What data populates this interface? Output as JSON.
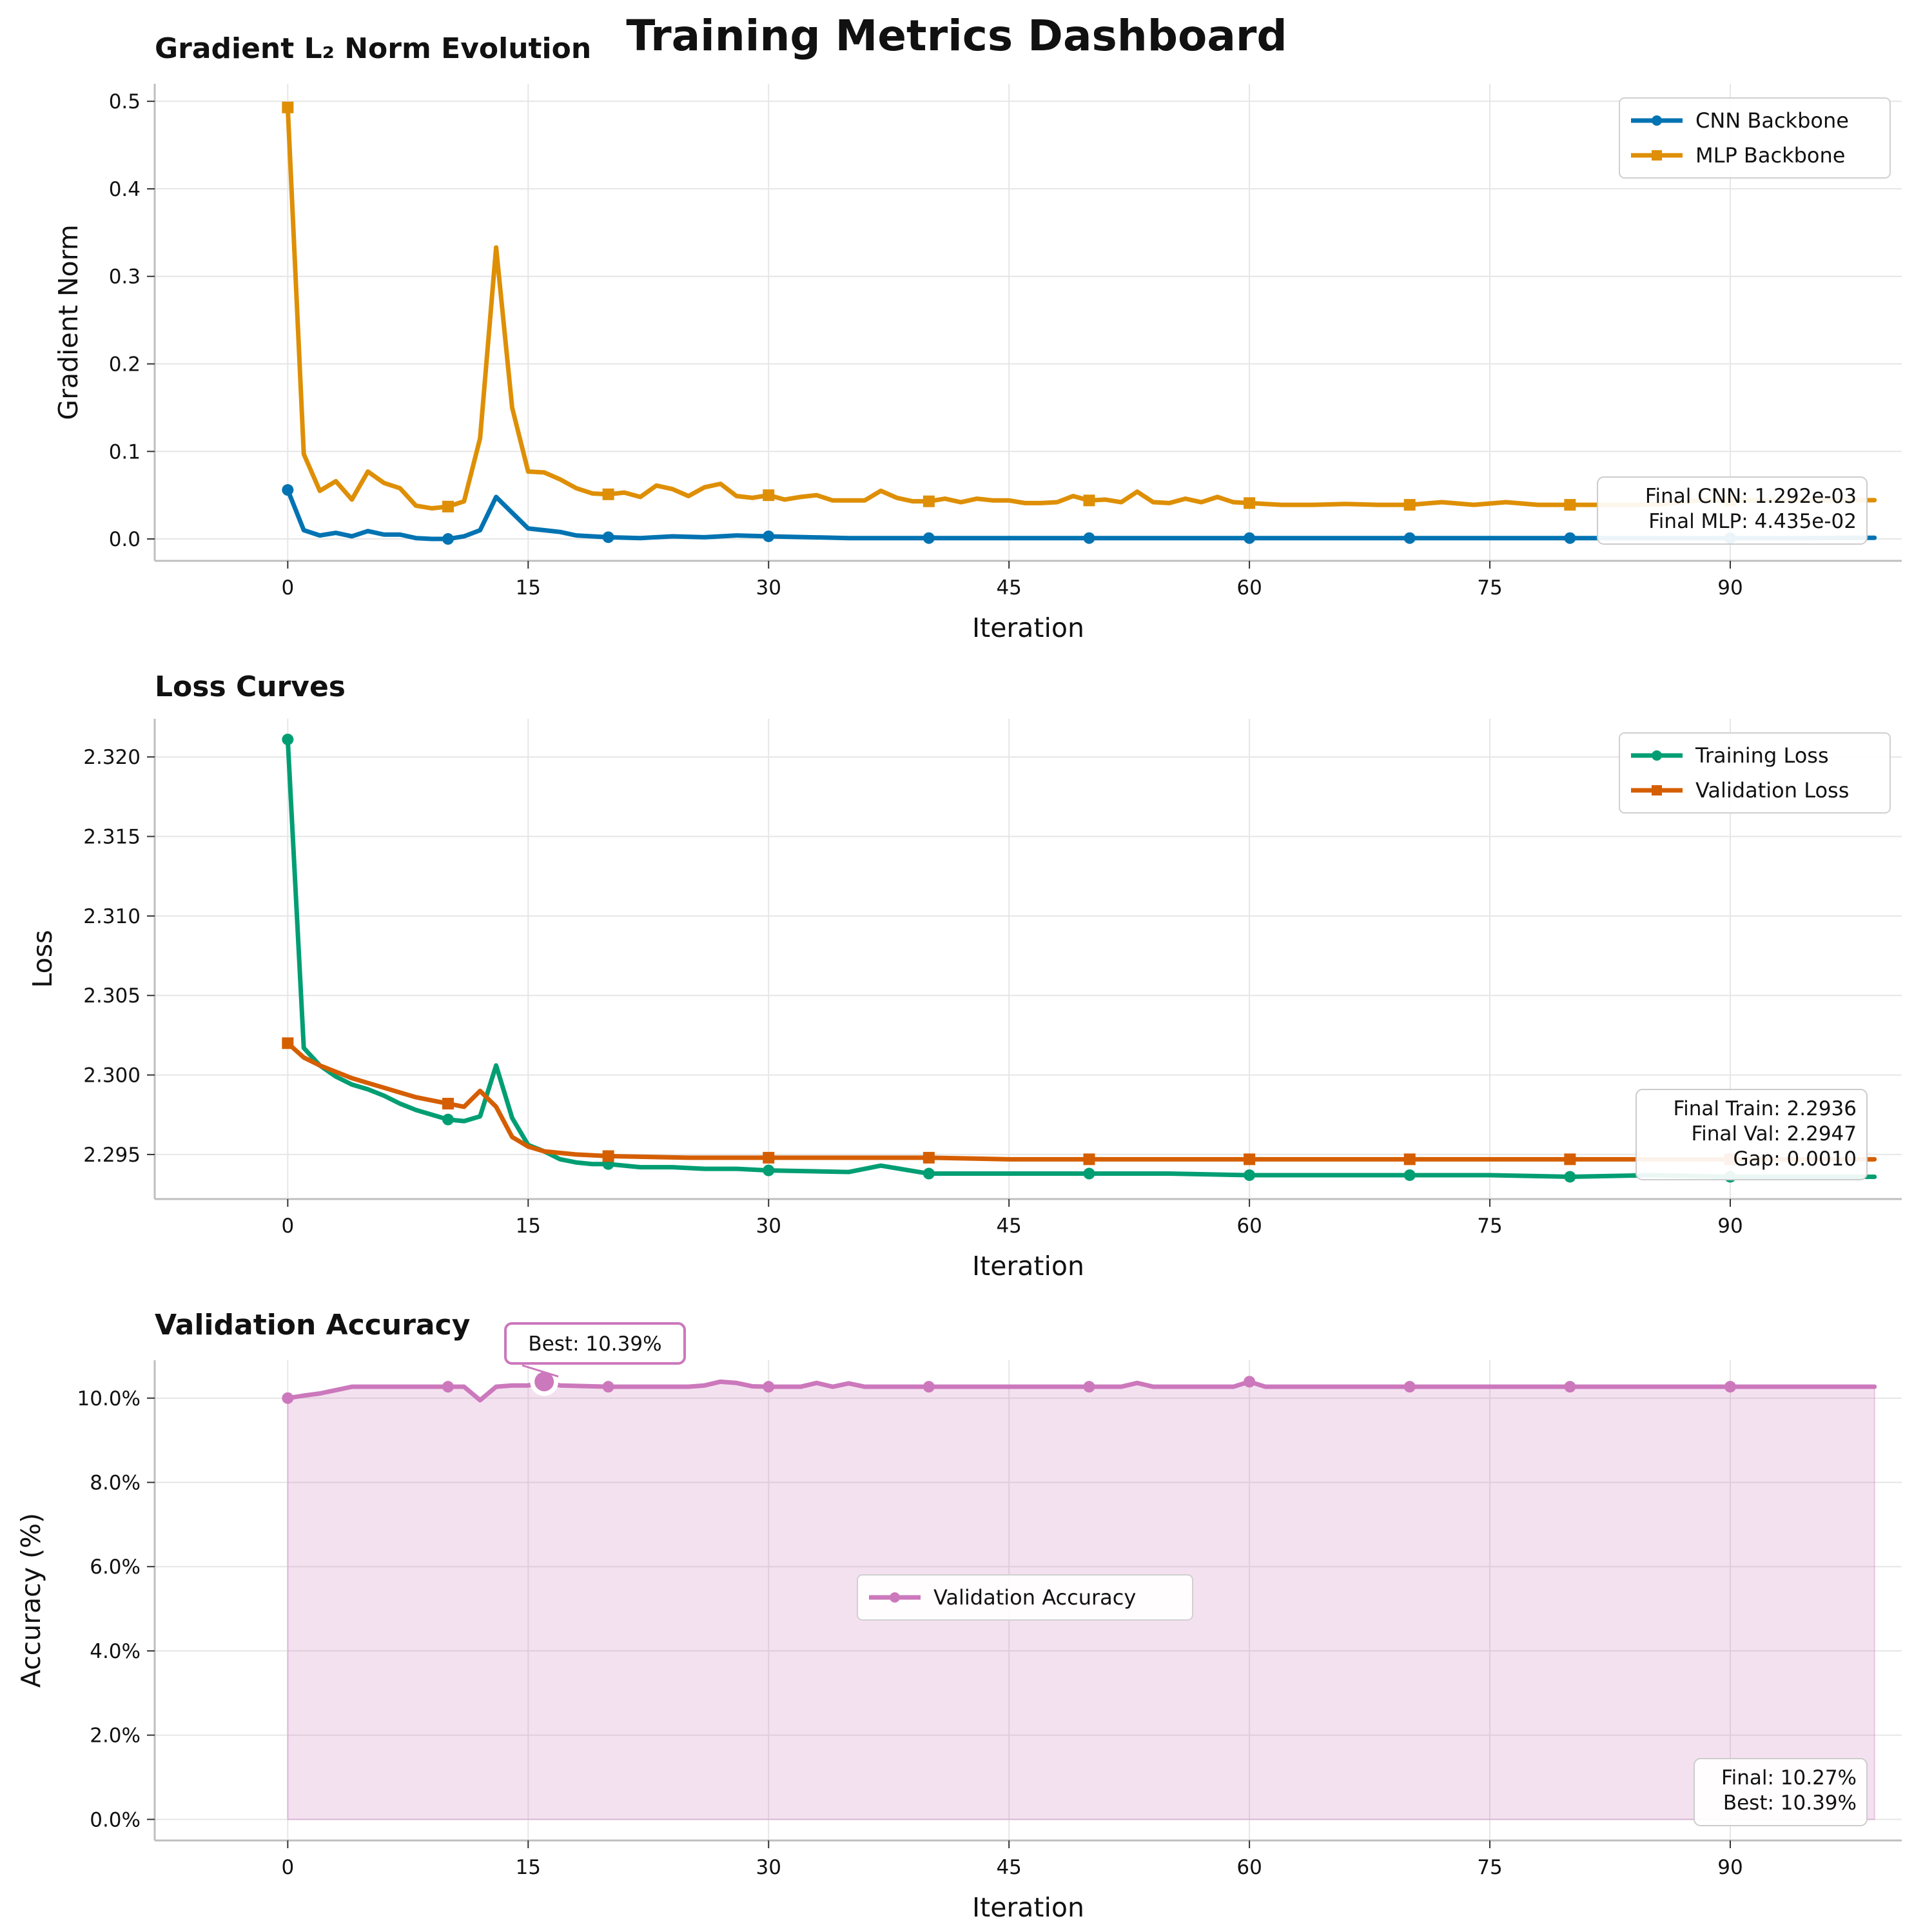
{
  "figure_title": "Training Metrics Dashboard",
  "colors": {
    "cnn": "#0173B2",
    "mlp": "#DE8F05",
    "train": "#029E73",
    "val": "#D55E00",
    "acc": "#CC78BC",
    "grid": "#E6E6E6",
    "spine": "#BFBFBF"
  },
  "chart_data": [
    {
      "type": "line",
      "title": "Gradient L₂ Norm Evolution",
      "xlabel": "Iteration",
      "ylabel": "Gradient Norm",
      "xlim": [
        -8.3,
        100.7
      ],
      "ylim": [
        -0.025,
        0.52
      ],
      "xticks": [
        0,
        15,
        30,
        45,
        60,
        75,
        90
      ],
      "xtick_labels": [
        "0",
        "15",
        "30",
        "45",
        "60",
        "75",
        "90"
      ],
      "yticks": [
        0.0,
        0.1,
        0.2,
        0.3,
        0.4,
        0.5
      ],
      "ytick_labels": [
        "0.0",
        "0.1",
        "0.2",
        "0.3",
        "0.4",
        "0.5"
      ],
      "grid": true,
      "legend": "top-right",
      "annotation": [
        "Final CNN: 1.292e-03",
        "Final MLP: 4.435e-02"
      ],
      "series": [
        {
          "name": "CNN Backbone",
          "marker": "circle",
          "color": "#0173B2",
          "markevery": 10,
          "x": [
            0,
            1,
            2,
            3,
            4,
            5,
            6,
            7,
            8,
            9,
            10,
            11,
            12,
            13,
            14,
            15,
            16,
            17,
            18,
            19,
            20,
            22,
            24,
            26,
            28,
            30,
            35,
            40,
            45,
            50,
            55,
            60,
            65,
            70,
            75,
            80,
            85,
            90,
            95,
            99
          ],
          "y": [
            0.056,
            0.01,
            0.004,
            0.007,
            0.003,
            0.009,
            0.005,
            0.005,
            0.001,
            0.0,
            0.0,
            0.003,
            0.01,
            0.048,
            0.03,
            0.012,
            0.01,
            0.008,
            0.004,
            0.003,
            0.002,
            0.001,
            0.003,
            0.002,
            0.004,
            0.003,
            0.001,
            0.001,
            0.001,
            0.001,
            0.001,
            0.001,
            0.001,
            0.001,
            0.001,
            0.001,
            0.001,
            0.001,
            0.001,
            0.0013
          ]
        },
        {
          "name": "MLP Backbone",
          "marker": "square",
          "color": "#DE8F05",
          "markevery": 10,
          "x": [
            0,
            1,
            2,
            3,
            4,
            5,
            6,
            7,
            8,
            9,
            10,
            11,
            12,
            13,
            14,
            15,
            16,
            17,
            18,
            19,
            20,
            21,
            22,
            23,
            24,
            25,
            26,
            27,
            28,
            29,
            30,
            31,
            32,
            33,
            34,
            35,
            36,
            37,
            38,
            39,
            40,
            41,
            42,
            43,
            44,
            45,
            46,
            47,
            48,
            49,
            50,
            51,
            52,
            53,
            54,
            55,
            56,
            57,
            58,
            59,
            60,
            62,
            64,
            66,
            68,
            70,
            72,
            74,
            76,
            78,
            80,
            82,
            84,
            86,
            88,
            90,
            92,
            94,
            96,
            99
          ],
          "y": [
            0.493,
            0.097,
            0.055,
            0.066,
            0.045,
            0.077,
            0.064,
            0.058,
            0.038,
            0.035,
            0.037,
            0.043,
            0.115,
            0.333,
            0.15,
            0.077,
            0.076,
            0.068,
            0.058,
            0.052,
            0.051,
            0.053,
            0.048,
            0.061,
            0.057,
            0.049,
            0.059,
            0.063,
            0.049,
            0.047,
            0.05,
            0.045,
            0.048,
            0.05,
            0.044,
            0.044,
            0.044,
            0.055,
            0.047,
            0.043,
            0.043,
            0.046,
            0.042,
            0.046,
            0.044,
            0.044,
            0.041,
            0.041,
            0.042,
            0.049,
            0.044,
            0.045,
            0.042,
            0.054,
            0.042,
            0.041,
            0.046,
            0.042,
            0.048,
            0.042,
            0.041,
            0.039,
            0.039,
            0.04,
            0.039,
            0.039,
            0.042,
            0.039,
            0.042,
            0.039,
            0.039,
            0.039,
            0.039,
            0.04,
            0.044,
            0.044,
            0.044,
            0.044,
            0.044,
            0.04435
          ]
        }
      ]
    },
    {
      "type": "line",
      "title": "Loss Curves",
      "xlabel": "Iteration",
      "ylabel": "Loss",
      "xlim": [
        -8.3,
        100.7
      ],
      "ylim": [
        2.2922,
        2.3224
      ],
      "xticks": [
        0,
        15,
        30,
        45,
        60,
        75,
        90
      ],
      "xtick_labels": [
        "0",
        "15",
        "30",
        "45",
        "60",
        "75",
        "90"
      ],
      "yticks": [
        2.295,
        2.3,
        2.305,
        2.31,
        2.315,
        2.32
      ],
      "ytick_labels": [
        "2.295",
        "2.300",
        "2.305",
        "2.310",
        "2.315",
        "2.320"
      ],
      "grid": true,
      "legend": "top-right",
      "annotation": [
        "Final Train: 2.2936",
        "Final Val: 2.2947",
        "Gap: 0.0010"
      ],
      "series": [
        {
          "name": "Training Loss",
          "marker": "circle",
          "color": "#029E73",
          "markevery": 10,
          "x": [
            0,
            1,
            2,
            3,
            4,
            5,
            6,
            7,
            8,
            9,
            10,
            11,
            12,
            13,
            14,
            15,
            16,
            17,
            18,
            19,
            20,
            22,
            24,
            26,
            28,
            30,
            35,
            37,
            40,
            45,
            50,
            55,
            60,
            65,
            70,
            75,
            80,
            85,
            90,
            95,
            99
          ],
          "y": [
            2.3211,
            2.3017,
            2.3006,
            2.2999,
            2.2994,
            2.2991,
            2.2987,
            2.2982,
            2.2978,
            2.2975,
            2.2972,
            2.2971,
            2.2974,
            2.3006,
            2.2973,
            2.2956,
            2.2952,
            2.2947,
            2.2945,
            2.2944,
            2.2944,
            2.2942,
            2.2942,
            2.2941,
            2.2941,
            2.294,
            2.2939,
            2.2943,
            2.2938,
            2.2938,
            2.2938,
            2.2938,
            2.2937,
            2.2937,
            2.2937,
            2.2937,
            2.2936,
            2.2937,
            2.2936,
            2.2936,
            2.2936
          ]
        },
        {
          "name": "Validation Loss",
          "marker": "square",
          "color": "#D55E00",
          "markevery": 10,
          "x": [
            0,
            1,
            2,
            3,
            4,
            5,
            6,
            7,
            8,
            9,
            10,
            11,
            12,
            13,
            14,
            15,
            16,
            17,
            18,
            20,
            25,
            30,
            35,
            40,
            45,
            50,
            55,
            60,
            65,
            70,
            75,
            80,
            85,
            90,
            95,
            99
          ],
          "y": [
            2.302,
            2.3011,
            2.3006,
            2.3002,
            2.2998,
            2.2995,
            2.2992,
            2.2989,
            2.2986,
            2.2984,
            2.2982,
            2.298,
            2.299,
            2.298,
            2.2961,
            2.2955,
            2.2952,
            2.2951,
            2.295,
            2.2949,
            2.2948,
            2.2948,
            2.2948,
            2.2948,
            2.2947,
            2.2947,
            2.2947,
            2.2947,
            2.2947,
            2.2947,
            2.2947,
            2.2947,
            2.2947,
            2.2947,
            2.2947,
            2.2947
          ]
        }
      ]
    },
    {
      "type": "area",
      "title": "Validation Accuracy",
      "xlabel": "Iteration",
      "ylabel": "Accuracy (%)",
      "xlim": [
        -8.3,
        100.7
      ],
      "ylim": [
        -0.5,
        10.9
      ],
      "xticks": [
        0,
        15,
        30,
        45,
        60,
        75,
        90
      ],
      "xtick_labels": [
        "0",
        "15",
        "30",
        "45",
        "60",
        "75",
        "90"
      ],
      "yticks": [
        0,
        2,
        4,
        6,
        8,
        10
      ],
      "ytick_labels": [
        "0.0%",
        "2.0%",
        "4.0%",
        "6.0%",
        "8.0%",
        "10.0%"
      ],
      "grid": true,
      "legend": "center",
      "best_point": {
        "x": 16,
        "y": 10.39,
        "label": "Best: 10.39%"
      },
      "annotation": [
        "Final: 10.27%",
        "Best: 10.39%"
      ],
      "series": [
        {
          "name": "Validation Accuracy",
          "marker": "circle",
          "color": "#CC78BC",
          "markevery": 10,
          "x": [
            0,
            1,
            2,
            3,
            4,
            5,
            6,
            7,
            8,
            9,
            10,
            11,
            12,
            13,
            14,
            15,
            16,
            17,
            18,
            19,
            20,
            25,
            26,
            27,
            28,
            29,
            30,
            31,
            32,
            33,
            34,
            35,
            36,
            40,
            45,
            50,
            52,
            53,
            54,
            55,
            56,
            57,
            58,
            59,
            60,
            61,
            62,
            65,
            70,
            75,
            80,
            85,
            90,
            95,
            99
          ],
          "y": [
            10.0,
            10.06,
            10.11,
            10.19,
            10.27,
            10.27,
            10.27,
            10.27,
            10.27,
            10.27,
            10.27,
            10.27,
            9.95,
            10.27,
            10.3,
            10.3,
            10.39,
            10.3,
            10.29,
            10.28,
            10.27,
            10.27,
            10.3,
            10.39,
            10.36,
            10.28,
            10.27,
            10.27,
            10.27,
            10.36,
            10.27,
            10.35,
            10.27,
            10.27,
            10.27,
            10.27,
            10.27,
            10.36,
            10.27,
            10.27,
            10.27,
            10.27,
            10.27,
            10.27,
            10.39,
            10.27,
            10.27,
            10.27,
            10.27,
            10.27,
            10.27,
            10.27,
            10.27,
            10.27,
            10.27
          ]
        }
      ]
    }
  ]
}
